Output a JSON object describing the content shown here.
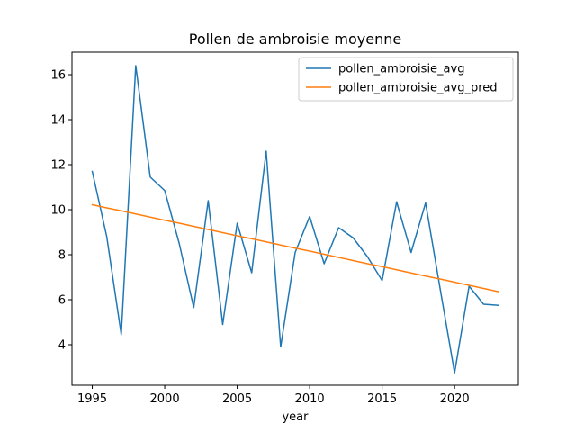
{
  "chart_data": {
    "type": "line",
    "title": "Pollen de ambroisie moyenne",
    "xlabel": "year",
    "ylabel": "",
    "xlim": [
      1993.6,
      2024.4
    ],
    "ylim": [
      2.2,
      17.0
    ],
    "x_ticks": [
      1995,
      2000,
      2005,
      2010,
      2015,
      2020
    ],
    "y_ticks": [
      4,
      6,
      8,
      10,
      12,
      14,
      16
    ],
    "grid": false,
    "legend": {
      "position": "top-right"
    },
    "x": [
      1995,
      1996,
      1997,
      1998,
      1999,
      2000,
      2001,
      2002,
      2003,
      2004,
      2005,
      2006,
      2007,
      2008,
      2009,
      2010,
      2011,
      2012,
      2013,
      2014,
      2015,
      2016,
      2017,
      2018,
      2019,
      2020,
      2021,
      2022,
      2023
    ],
    "series": [
      {
        "name": "pollen_ambroisie_avg",
        "color": "#1f77b4",
        "values": [
          11.7,
          8.8,
          4.45,
          16.4,
          11.45,
          10.85,
          8.5,
          5.65,
          10.4,
          4.9,
          9.4,
          7.2,
          12.6,
          3.9,
          8.1,
          9.7,
          7.6,
          9.2,
          8.75,
          7.9,
          6.85,
          10.35,
          8.1,
          10.3,
          6.5,
          2.75,
          6.6,
          5.8,
          5.75
        ]
      },
      {
        "name": "pollen_ambroisie_avg_pred",
        "color": "#ff7f0e",
        "values": [
          10.22,
          10.08,
          9.95,
          9.81,
          9.67,
          9.53,
          9.4,
          9.26,
          9.12,
          8.98,
          8.84,
          8.71,
          8.57,
          8.43,
          8.29,
          8.16,
          8.02,
          7.88,
          7.74,
          7.6,
          7.47,
          7.33,
          7.19,
          7.05,
          6.92,
          6.78,
          6.64,
          6.5,
          6.36
        ]
      }
    ]
  }
}
